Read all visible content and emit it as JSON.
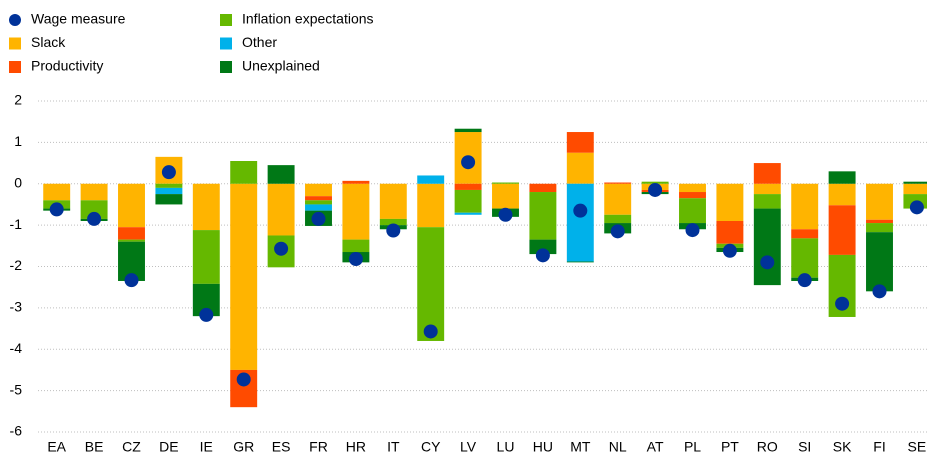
{
  "chart_data": {
    "type": "bar",
    "stacked": true,
    "categories": [
      "EA",
      "BE",
      "CZ",
      "DE",
      "IE",
      "GR",
      "ES",
      "FR",
      "HR",
      "IT",
      "CY",
      "LV",
      "LU",
      "HU",
      "MT",
      "NL",
      "AT",
      "PL",
      "PT",
      "RO",
      "SI",
      "SK",
      "FI",
      "SE"
    ],
    "markers": {
      "name": "Wage measure",
      "color": "#003299",
      "values": [
        -0.62,
        -0.85,
        -2.33,
        0.28,
        -3.17,
        -4.73,
        -1.57,
        -0.85,
        -1.82,
        -1.13,
        -3.57,
        0.52,
        -0.75,
        -1.73,
        -0.65,
        -1.15,
        -0.15,
        -1.12,
        -1.62,
        -1.9,
        -2.33,
        -2.9,
        -2.6,
        -0.57
      ]
    },
    "series": [
      {
        "name": "Slack",
        "color": "#ffb400",
        "values": [
          -0.4,
          -0.4,
          -1.05,
          0.65,
          -1.12,
          -4.5,
          -1.25,
          -0.3,
          -1.35,
          -0.85,
          -1.05,
          1.25,
          -0.6,
          0,
          0.75,
          -0.75,
          -0.15,
          -0.2,
          -0.9,
          -0.25,
          -1.1,
          -0.52,
          -0.87,
          -0.25
        ]
      },
      {
        "name": "Productivity",
        "color": "#ff4b00",
        "values": [
          0,
          0,
          -0.3,
          0,
          0,
          -0.9,
          0,
          -0.1,
          0.07,
          0,
          0,
          -0.15,
          0,
          -0.2,
          0.5,
          0.03,
          -0.05,
          -0.15,
          -0.55,
          0.5,
          -0.22,
          -1.2,
          -0.08,
          0
        ]
      },
      {
        "name": "Inflation expectations",
        "color": "#65b800",
        "values": [
          -0.2,
          -0.45,
          -0.05,
          -0.1,
          -1.3,
          0.55,
          -0.77,
          -0.1,
          -0.3,
          -0.15,
          -2.75,
          -0.55,
          0.03,
          -1.15,
          0,
          -0.2,
          0.05,
          -0.6,
          -0.1,
          -0.35,
          -0.95,
          -1.5,
          -0.22,
          -0.35
        ]
      },
      {
        "name": "Other",
        "color": "#00b1ea",
        "values": [
          0,
          0,
          0,
          -0.15,
          0,
          0,
          0,
          -0.15,
          0,
          0,
          0.2,
          -0.05,
          0,
          0,
          -1.88,
          0,
          0,
          0,
          0,
          0,
          0,
          0,
          0,
          0
        ]
      },
      {
        "name": "Unexplained",
        "color": "#007816",
        "values": [
          -0.05,
          -0.05,
          -0.95,
          -0.25,
          -0.78,
          0,
          0.45,
          -0.37,
          -0.25,
          -0.1,
          0,
          0.08,
          -0.2,
          -0.35,
          -0.02,
          -0.25,
          -0.05,
          -0.15,
          -0.1,
          -1.85,
          -0.08,
          0.3,
          -1.43,
          0.05
        ]
      }
    ],
    "ylim": [
      -6,
      2
    ],
    "yticks": [
      -6,
      -5,
      -4,
      -3,
      -2,
      -1,
      0,
      1,
      2
    ],
    "grid": true
  }
}
